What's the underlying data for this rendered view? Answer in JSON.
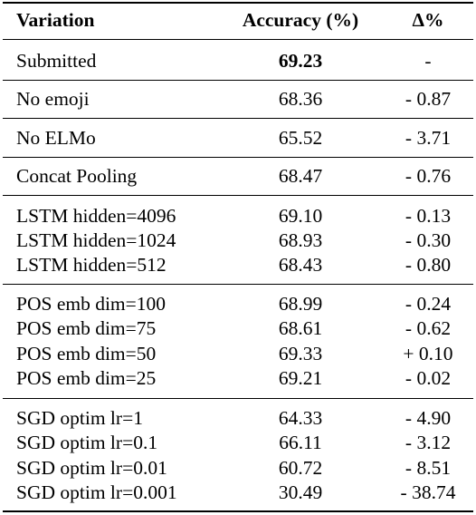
{
  "table": {
    "headers": {
      "variation": "Variation",
      "accuracy": "Accuracy (%)",
      "delta": "Δ%"
    },
    "groups": [
      {
        "rows": [
          {
            "variation": "Submitted",
            "accuracy": "69.23",
            "delta": "-",
            "bold_accuracy": true
          }
        ]
      },
      {
        "rows": [
          {
            "variation": "No emoji",
            "accuracy": "68.36",
            "delta": "- 0.87"
          }
        ]
      },
      {
        "rows": [
          {
            "variation": "No ELMo",
            "accuracy": "65.52",
            "delta": "- 3.71"
          }
        ]
      },
      {
        "rows": [
          {
            "variation": "Concat Pooling",
            "accuracy": "68.47",
            "delta": "- 0.76"
          }
        ]
      },
      {
        "rows": [
          {
            "variation": "LSTM hidden=4096",
            "accuracy": "69.10",
            "delta": "- 0.13"
          },
          {
            "variation": "LSTM hidden=1024",
            "accuracy": "68.93",
            "delta": "- 0.30"
          },
          {
            "variation": "LSTM hidden=512",
            "accuracy": "68.43",
            "delta": "- 0.80"
          }
        ]
      },
      {
        "rows": [
          {
            "variation": "POS emb dim=100",
            "accuracy": "68.99",
            "delta": "- 0.24"
          },
          {
            "variation": "POS emb dim=75",
            "accuracy": "68.61",
            "delta": "- 0.62"
          },
          {
            "variation": "POS emb dim=50",
            "accuracy": "69.33",
            "delta": "+ 0.10"
          },
          {
            "variation": "POS emb dim=25",
            "accuracy": "69.21",
            "delta": "- 0.02"
          }
        ]
      },
      {
        "rows": [
          {
            "variation": "SGD optim lr=1",
            "accuracy": "64.33",
            "delta": "- 4.90"
          },
          {
            "variation": "SGD optim lr=0.1",
            "accuracy": "66.11",
            "delta": "- 3.12"
          },
          {
            "variation": "SGD optim lr=0.01",
            "accuracy": "60.72",
            "delta": "- 8.51"
          },
          {
            "variation": "SGD optim lr=0.001",
            "accuracy": "30.49",
            "delta": "- 38.74"
          }
        ]
      }
    ]
  }
}
